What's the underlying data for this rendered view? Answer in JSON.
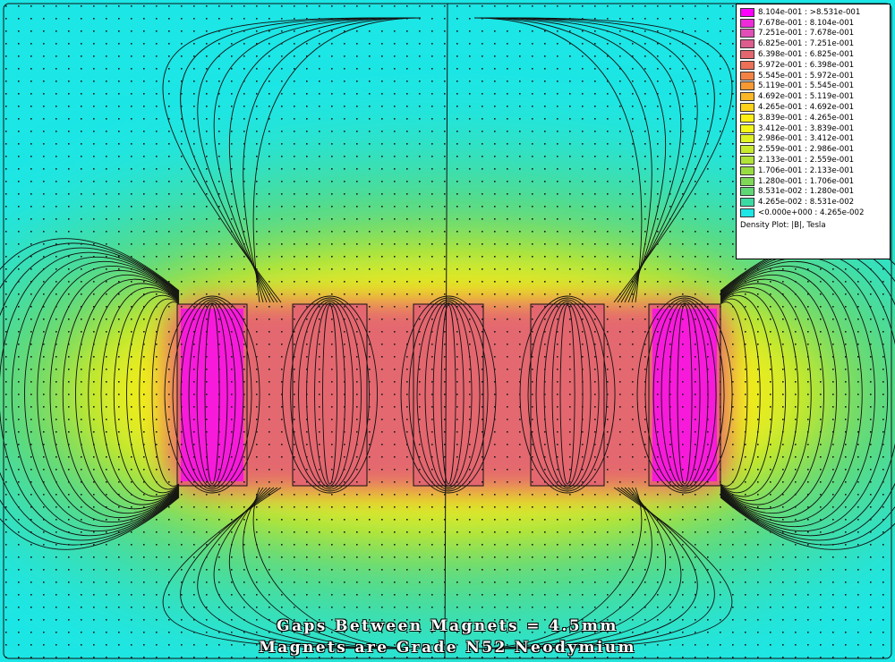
{
  "legend": {
    "entries": [
      {
        "label": "8.104e-001 : >8.531e-001",
        "color": "#ff00ff"
      },
      {
        "label": "7.678e-001 : 8.104e-001",
        "color": "#ee2bd9"
      },
      {
        "label": "7.251e-001 : 7.678e-001",
        "color": "#e24eb8"
      },
      {
        "label": "6.825e-001 : 7.251e-001",
        "color": "#dd5d8f"
      },
      {
        "label": "6.398e-001 : 6.825e-001",
        "color": "#e4676f"
      },
      {
        "label": "5.972e-001 : 6.398e-001",
        "color": "#ec7057"
      },
      {
        "label": "5.545e-001 : 5.972e-001",
        "color": "#f38345"
      },
      {
        "label": "5.119e-001 : 5.545e-001",
        "color": "#f89a33"
      },
      {
        "label": "4.692e-001 : 5.119e-001",
        "color": "#fcb726"
      },
      {
        "label": "4.265e-001 : 4.692e-001",
        "color": "#ffd21a"
      },
      {
        "label": "3.839e-001 : 4.265e-001",
        "color": "#ffee12"
      },
      {
        "label": "3.412e-001 : 3.839e-001",
        "color": "#f4f717"
      },
      {
        "label": "2.986e-001 : 3.412e-001",
        "color": "#e0f222"
      },
      {
        "label": "2.559e-001 : 2.986e-001",
        "color": "#c8ea2c"
      },
      {
        "label": "2.133e-001 : 2.559e-001",
        "color": "#b0e337"
      },
      {
        "label": "1.706e-001 : 2.133e-001",
        "color": "#98dc42"
      },
      {
        "label": "1.280e-001 : 1.706e-001",
        "color": "#7fd856"
      },
      {
        "label": "8.531e-002 : 1.280e-001",
        "color": "#60d775"
      },
      {
        "label": "4.265e-002 : 8.531e-002",
        "color": "#3cdaa3"
      },
      {
        "label": "<0.000e+000 : 4.265e-002",
        "color": "#1ce6e6"
      }
    ],
    "title": "Density Plot: |B|, Tesla"
  },
  "caption": {
    "line1": "Gaps Between Magnets = 4.5mm",
    "line2": "Magnets are Grade N52 Neodymium"
  },
  "colors": {
    "background": "#1ce6e6",
    "fringe": "#60d775",
    "mid": "#c8ea2c",
    "near": "#ffee12",
    "magnet": "#e4676f",
    "magnet_core": "#ff00ff"
  }
}
